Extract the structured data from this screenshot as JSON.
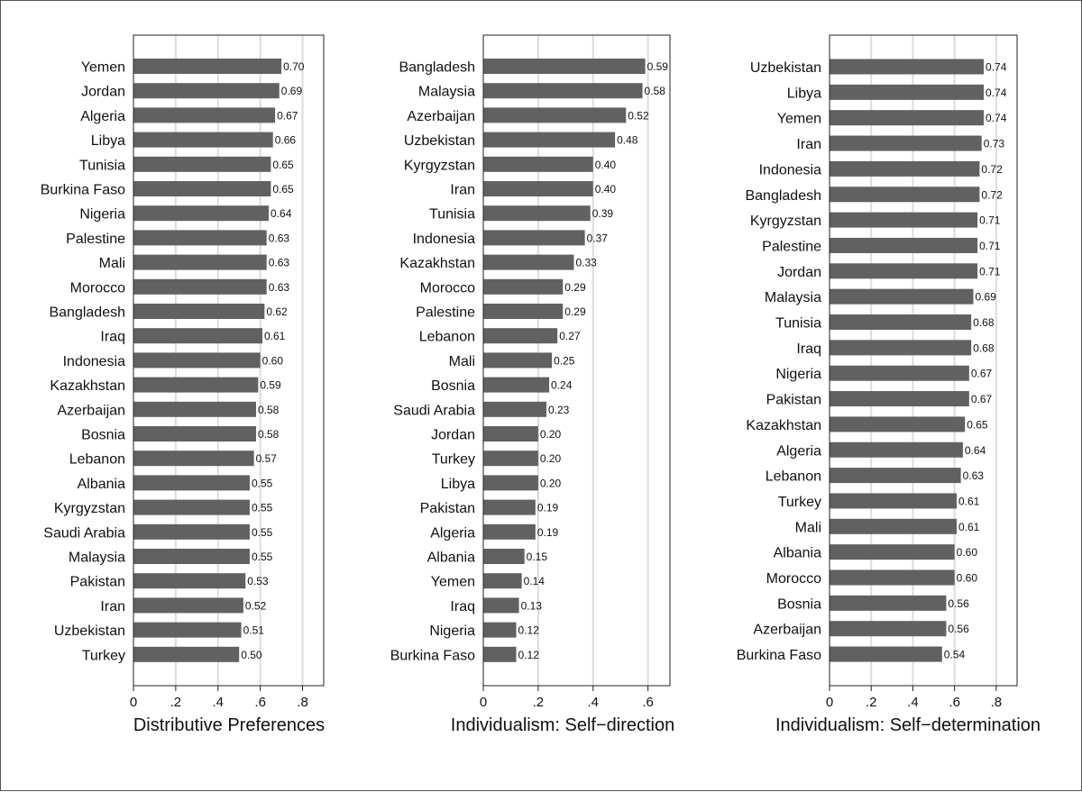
{
  "colors": {
    "bar": "#616161",
    "grid": "#dcdcdc",
    "frame": "#222222",
    "text": "#111111"
  },
  "chart_data": [
    {
      "type": "bar",
      "orientation": "horizontal",
      "xlabel": "Distributive Preferences",
      "xlim": [
        0,
        0.9
      ],
      "xticks": [
        0,
        0.2,
        0.4,
        0.6,
        0.8
      ],
      "xtick_labels": [
        "0",
        ".2",
        ".4",
        ".6",
        ".8"
      ],
      "grid": true,
      "categories": [
        "Yemen",
        "Jordan",
        "Algeria",
        "Libya",
        "Tunisia",
        "Burkina Faso",
        "Nigeria",
        "Palestine",
        "Mali",
        "Morocco",
        "Bangladesh",
        "Iraq",
        "Indonesia",
        "Kazakhstan",
        "Azerbaijan",
        "Bosnia",
        "Lebanon",
        "Albania",
        "Kyrgyzstan",
        "Saudi Arabia",
        "Malaysia",
        "Pakistan",
        "Iran",
        "Uzbekistan",
        "Turkey"
      ],
      "values": [
        0.7,
        0.69,
        0.67,
        0.66,
        0.65,
        0.65,
        0.64,
        0.63,
        0.63,
        0.63,
        0.62,
        0.61,
        0.6,
        0.59,
        0.58,
        0.58,
        0.57,
        0.55,
        0.55,
        0.55,
        0.55,
        0.53,
        0.52,
        0.51,
        0.5
      ],
      "value_labels": [
        "0.70",
        "0.69",
        "0.67",
        "0.66",
        "0.65",
        "0.65",
        "0.64",
        "0.63",
        "0.63",
        "0.63",
        "0.62",
        "0.61",
        "0.60",
        "0.59",
        "0.58",
        "0.58",
        "0.57",
        "0.55",
        "0.55",
        "0.55",
        "0.55",
        "0.53",
        "0.52",
        "0.51",
        "0.50"
      ]
    },
    {
      "type": "bar",
      "orientation": "horizontal",
      "xlabel": "Individualism: Self−direction",
      "xlim": [
        0,
        0.68
      ],
      "xticks": [
        0,
        0.2,
        0.4,
        0.6
      ],
      "xtick_labels": [
        "0",
        ".2",
        ".4",
        ".6"
      ],
      "grid": true,
      "categories": [
        "Bangladesh",
        "Malaysia",
        "Azerbaijan",
        "Uzbekistan",
        "Kyrgyzstan",
        "Iran",
        "Tunisia",
        "Indonesia",
        "Kazakhstan",
        "Morocco",
        "Palestine",
        "Lebanon",
        "Mali",
        "Bosnia",
        "Saudi Arabia",
        "Jordan",
        "Turkey",
        "Libya",
        "Pakistan",
        "Algeria",
        "Albania",
        "Yemen",
        "Iraq",
        "Nigeria",
        "Burkina Faso"
      ],
      "values": [
        0.59,
        0.58,
        0.52,
        0.48,
        0.4,
        0.4,
        0.39,
        0.37,
        0.33,
        0.29,
        0.29,
        0.27,
        0.25,
        0.24,
        0.23,
        0.2,
        0.2,
        0.2,
        0.19,
        0.19,
        0.15,
        0.14,
        0.13,
        0.12,
        0.12
      ],
      "value_labels": [
        "0.59",
        "0.58",
        "0.52",
        "0.48",
        "0.40",
        "0.40",
        "0.39",
        "0.37",
        "0.33",
        "0.29",
        "0.29",
        "0.27",
        "0.25",
        "0.24",
        "0.23",
        "0.20",
        "0.20",
        "0.20",
        "0.19",
        "0.19",
        "0.15",
        "0.14",
        "0.13",
        "0.12",
        "0.12"
      ]
    },
    {
      "type": "bar",
      "orientation": "horizontal",
      "xlabel": "Individualism: Self−determination",
      "xlim": [
        0,
        0.9
      ],
      "xticks": [
        0,
        0.2,
        0.4,
        0.6,
        0.8
      ],
      "xtick_labels": [
        "0",
        ".2",
        ".4",
        ".6",
        ".8"
      ],
      "grid": true,
      "categories": [
        "Uzbekistan",
        "Libya",
        "Yemen",
        "Iran",
        "Indonesia",
        "Bangladesh",
        "Kyrgyzstan",
        "Palestine",
        "Jordan",
        "Malaysia",
        "Tunisia",
        "Iraq",
        "Nigeria",
        "Pakistan",
        "Kazakhstan",
        "Algeria",
        "Lebanon",
        "Turkey",
        "Mali",
        "Albania",
        "Morocco",
        "Bosnia",
        "Azerbaijan",
        "Burkina Faso"
      ],
      "values": [
        0.74,
        0.74,
        0.74,
        0.73,
        0.72,
        0.72,
        0.71,
        0.71,
        0.71,
        0.69,
        0.68,
        0.68,
        0.67,
        0.67,
        0.65,
        0.64,
        0.63,
        0.61,
        0.61,
        0.6,
        0.6,
        0.56,
        0.56,
        0.54
      ],
      "value_labels": [
        "0.74",
        "0.74",
        "0.74",
        "0.73",
        "0.72",
        "0.72",
        "0.71",
        "0.71",
        "0.71",
        "0.69",
        "0.68",
        "0.68",
        "0.67",
        "0.67",
        "0.65",
        "0.64",
        "0.63",
        "0.61",
        "0.61",
        "0.60",
        "0.60",
        "0.56",
        "0.56",
        "0.54"
      ]
    }
  ]
}
